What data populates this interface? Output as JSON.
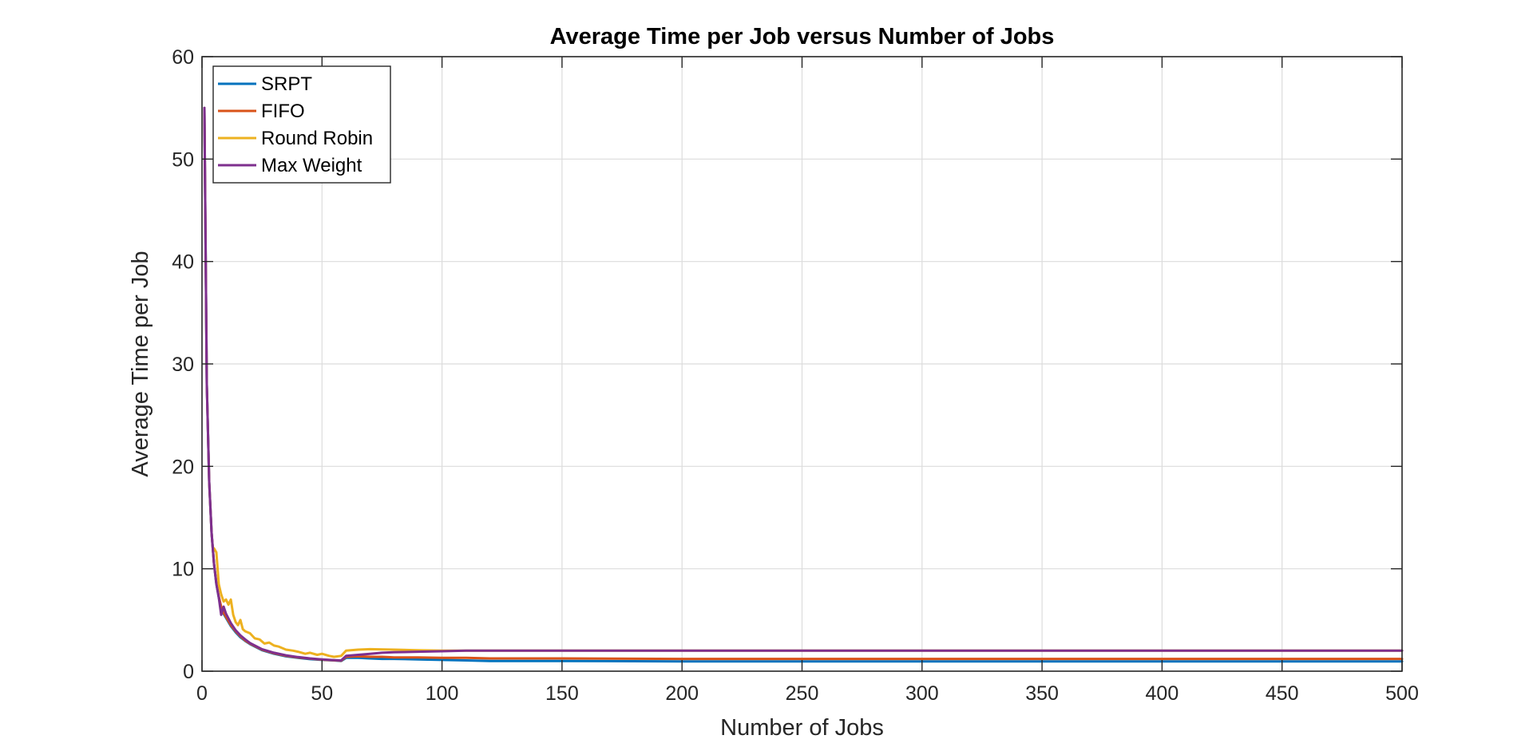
{
  "chart_data": {
    "type": "line",
    "title": "Average Time per Job versus Number of Jobs",
    "xlabel": "Number of Jobs",
    "ylabel": "Average Time per Job",
    "xlim": [
      0,
      500
    ],
    "ylim": [
      0,
      60
    ],
    "xticks": [
      0,
      50,
      100,
      150,
      200,
      250,
      300,
      350,
      400,
      450,
      500
    ],
    "yticks": [
      0,
      10,
      20,
      30,
      40,
      50,
      60
    ],
    "grid": true,
    "legend_position": "top-left",
    "series": [
      {
        "name": "SRPT",
        "color": "#0072BD",
        "x": [
          1,
          2,
          3,
          4,
          5,
          6,
          7,
          8,
          9,
          10,
          12,
          14,
          16,
          18,
          20,
          25,
          30,
          35,
          40,
          45,
          50,
          55,
          58,
          60,
          65,
          70,
          75,
          80,
          90,
          100,
          110,
          120,
          150,
          200,
          250,
          300,
          350,
          400,
          450,
          500
        ],
        "y": [
          55,
          28,
          18.5,
          13.5,
          10.5,
          8.5,
          7.2,
          6.2,
          5.6,
          5.2,
          4.4,
          3.8,
          3.3,
          2.95,
          2.65,
          2.05,
          1.7,
          1.45,
          1.3,
          1.18,
          1.1,
          1.05,
          1.0,
          1.3,
          1.3,
          1.25,
          1.2,
          1.2,
          1.15,
          1.1,
          1.05,
          1.0,
          1.0,
          0.95,
          0.95,
          0.95,
          0.95,
          0.95,
          0.95,
          0.95
        ]
      },
      {
        "name": "FIFO",
        "color": "#D95319",
        "x": [
          1,
          2,
          3,
          4,
          5,
          6,
          7,
          8,
          9,
          10,
          12,
          14,
          16,
          18,
          20,
          25,
          30,
          35,
          40,
          45,
          50,
          55,
          58,
          60,
          65,
          70,
          75,
          80,
          90,
          100,
          110,
          120,
          150,
          200,
          250,
          300,
          350,
          400,
          450,
          500
        ],
        "y": [
          55,
          28,
          18.5,
          13.5,
          10.5,
          8.6,
          7.3,
          6.3,
          5.7,
          5.3,
          4.5,
          3.9,
          3.4,
          3.0,
          2.7,
          2.1,
          1.75,
          1.5,
          1.35,
          1.22,
          1.12,
          1.06,
          1.02,
          1.4,
          1.45,
          1.4,
          1.4,
          1.35,
          1.35,
          1.3,
          1.3,
          1.25,
          1.25,
          1.2,
          1.2,
          1.2,
          1.2,
          1.2,
          1.2,
          1.2
        ]
      },
      {
        "name": "Round Robin",
        "color": "#EDB120",
        "x": [
          5,
          6,
          7,
          8,
          9,
          10,
          11,
          12,
          13,
          14,
          15,
          16,
          17,
          18,
          20,
          22,
          24,
          26,
          28,
          30,
          32,
          35,
          38,
          40,
          43,
          45,
          48,
          50,
          53,
          55,
          58,
          60,
          65,
          70,
          80,
          90,
          100,
          110,
          120,
          150,
          200,
          250,
          300,
          350,
          400,
          450,
          500
        ],
        "y": [
          12,
          11.6,
          8.5,
          7.5,
          6.8,
          7.0,
          6.5,
          7.0,
          5.5,
          4.8,
          4.5,
          5.0,
          4.1,
          3.9,
          3.7,
          3.2,
          3.1,
          2.7,
          2.8,
          2.5,
          2.4,
          2.1,
          2.0,
          1.9,
          1.7,
          1.8,
          1.6,
          1.7,
          1.5,
          1.4,
          1.5,
          2.0,
          2.1,
          2.15,
          2.1,
          2.05,
          2.0,
          2.0,
          2.0,
          2.0,
          2.0,
          2.0,
          2.0,
          2.0,
          2.0,
          2.0,
          2.0
        ]
      },
      {
        "name": "Max Weight",
        "color": "#7E2F8E",
        "x": [
          1,
          2,
          3,
          4,
          5,
          6,
          7,
          8,
          9,
          10,
          12,
          14,
          16,
          18,
          20,
          25,
          30,
          35,
          40,
          45,
          50,
          55,
          58,
          60,
          65,
          70,
          75,
          80,
          90,
          100,
          110,
          120,
          150,
          200,
          250,
          300,
          350,
          400,
          450,
          500
        ],
        "y": [
          55,
          28,
          18.5,
          13.5,
          10.5,
          8.5,
          7.2,
          5.5,
          6.3,
          5.6,
          4.7,
          4.0,
          3.5,
          3.1,
          2.75,
          2.15,
          1.8,
          1.55,
          1.38,
          1.25,
          1.15,
          1.08,
          1.05,
          1.5,
          1.6,
          1.7,
          1.8,
          1.85,
          1.9,
          1.95,
          2.0,
          2.0,
          2.0,
          2.0,
          2.0,
          2.0,
          2.0,
          2.0,
          2.0,
          2.0
        ]
      }
    ]
  }
}
